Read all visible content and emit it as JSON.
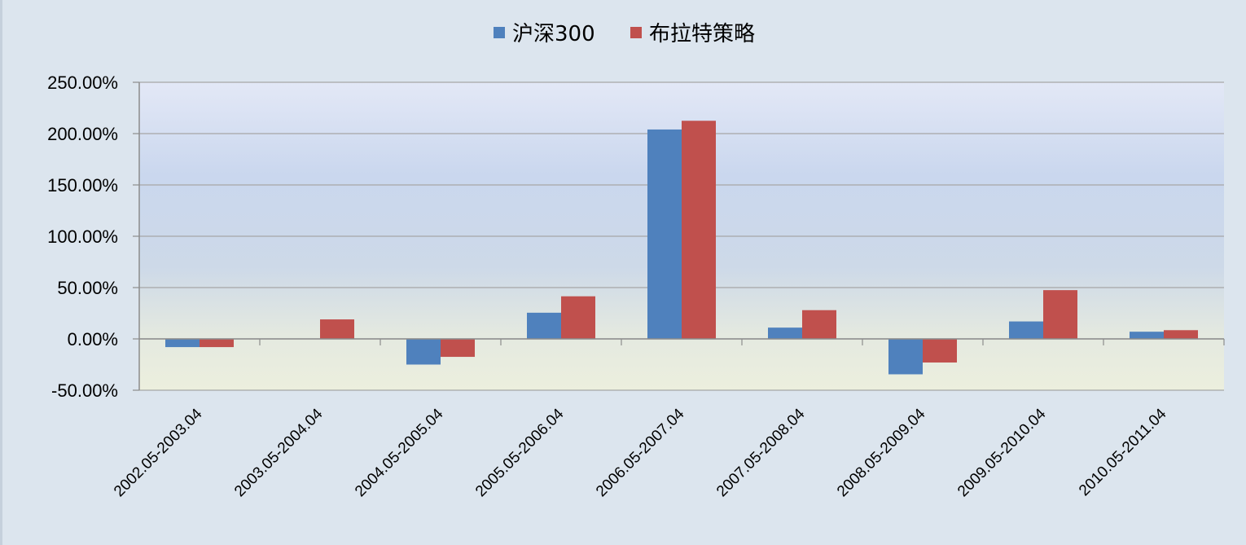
{
  "chart_data": {
    "type": "bar",
    "categories": [
      "2002.05-2003.04",
      "2003.05-2004.04",
      "2004.05-2005.04",
      "2005.05-2006.04",
      "2006.05-2007.04",
      "2007.05-2008.04",
      "2008.05-2009.04",
      "2009.05-2010.04",
      "2010.05-2011.04"
    ],
    "series": [
      {
        "name": "沪深300",
        "color": "#4f81bd",
        "values": [
          -8.0,
          0.0,
          -25.0,
          25.5,
          204.0,
          11.0,
          -34.5,
          17.0,
          7.0
        ]
      },
      {
        "name": "布拉特策略",
        "color": "#c0504d",
        "values": [
          -8.0,
          19.0,
          -17.5,
          41.5,
          212.5,
          28.0,
          -23.0,
          47.5,
          8.5
        ]
      }
    ],
    "y_ticks": [
      "250.00%",
      "200.00%",
      "150.00%",
      "100.00%",
      "50.00%",
      "0.00%",
      "-50.00%"
    ],
    "ylim": [
      -50,
      250
    ],
    "title": "",
    "xlabel": "",
    "ylabel": "",
    "grid": true,
    "legend_position": "top-center"
  }
}
